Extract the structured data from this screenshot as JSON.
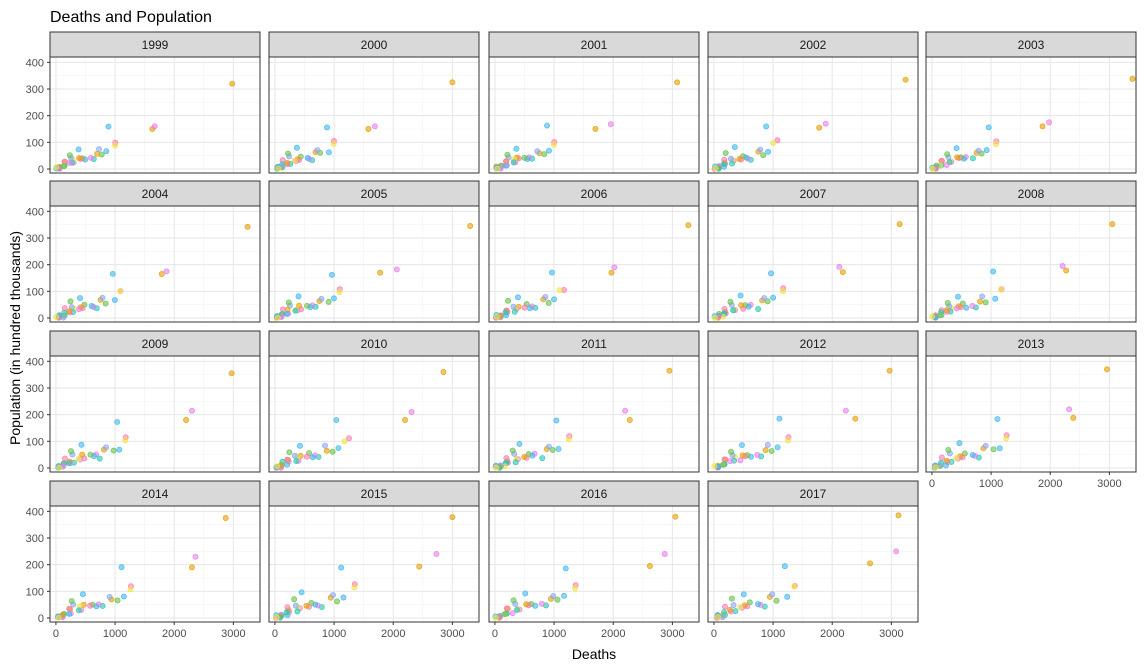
{
  "chart_data": {
    "type": "scatter",
    "title": "Deaths and Population",
    "xlabel": "Deaths",
    "ylabel": "Population (in hundred thousands)",
    "xlim": [
      -100,
      3450
    ],
    "ylim": [
      -15,
      420
    ],
    "x_ticks": [
      0,
      1000,
      2000,
      3000
    ],
    "x_tick_labels": [
      "0",
      "1000",
      "2000",
      "3000"
    ],
    "y_ticks": [
      0,
      100,
      200,
      300,
      400
    ],
    "y_tick_labels": [
      "0",
      "100",
      "200",
      "300",
      "400"
    ],
    "facet_by": "Year",
    "facets": [
      "1999",
      "2000",
      "2001",
      "2002",
      "2003",
      "2004",
      "2005",
      "2006",
      "2007",
      "2008",
      "2009",
      "2010",
      "2011",
      "2012",
      "2013",
      "2014",
      "2015",
      "2016",
      "2017"
    ],
    "colors": [
      "#E69F00",
      "#F0E442",
      "#66C24A",
      "#22C9B0",
      "#3FB8F0",
      "#8AA6F5",
      "#E97EEB",
      "#FF79B5"
    ],
    "point_alpha": 0.6,
    "base_points": [
      {
        "x": 2980,
        "y": 320,
        "c": 0
      },
      {
        "x": 1620,
        "y": 150,
        "c": 0
      },
      {
        "x": 1660,
        "y": 160,
        "c": 6
      },
      {
        "x": 1000,
        "y": 100,
        "c": 7
      },
      {
        "x": 985,
        "y": 92,
        "c": 1
      },
      {
        "x": 860,
        "y": 155,
        "c": 4
      },
      {
        "x": 880,
        "y": 65,
        "c": 4
      },
      {
        "x": 790,
        "y": 55,
        "c": 2
      },
      {
        "x": 700,
        "y": 60,
        "c": 0
      },
      {
        "x": 720,
        "y": 70,
        "c": 5
      },
      {
        "x": 620,
        "y": 35,
        "c": 3
      },
      {
        "x": 560,
        "y": 42,
        "c": 6
      },
      {
        "x": 520,
        "y": 38,
        "c": 4
      },
      {
        "x": 460,
        "y": 45,
        "c": 2
      },
      {
        "x": 420,
        "y": 35,
        "c": 7
      },
      {
        "x": 380,
        "y": 40,
        "c": 0
      },
      {
        "x": 360,
        "y": 75,
        "c": 4
      },
      {
        "x": 330,
        "y": 28,
        "c": 6
      },
      {
        "x": 300,
        "y": 32,
        "c": 1
      },
      {
        "x": 280,
        "y": 22,
        "c": 3
      },
      {
        "x": 250,
        "y": 42,
        "c": 5
      },
      {
        "x": 220,
        "y": 55,
        "c": 2
      },
      {
        "x": 200,
        "y": 18,
        "c": 6
      },
      {
        "x": 180,
        "y": 25,
        "c": 0
      },
      {
        "x": 160,
        "y": 12,
        "c": 4
      },
      {
        "x": 150,
        "y": 30,
        "c": 7
      },
      {
        "x": 130,
        "y": 16,
        "c": 3
      },
      {
        "x": 110,
        "y": 8,
        "c": 1
      },
      {
        "x": 100,
        "y": 10,
        "c": 2
      },
      {
        "x": 85,
        "y": 6,
        "c": 5
      },
      {
        "x": 70,
        "y": 5,
        "c": 6
      },
      {
        "x": 55,
        "y": 4,
        "c": 0
      },
      {
        "x": 45,
        "y": 3,
        "c": 3
      },
      {
        "x": 35,
        "y": 2,
        "c": 7
      },
      {
        "x": 30,
        "y": 6,
        "c": 4
      },
      {
        "x": 25,
        "y": 2,
        "c": 1
      }
    ],
    "years": [
      {
        "year": "1999",
        "x_scale": 1.0,
        "y_scale": 1.0,
        "top_x": 2980,
        "top_y": 320,
        "p1_x": 1630,
        "p1_y": 150,
        "p2_x": 1670,
        "p2_y": 160
      },
      {
        "year": "2000",
        "x_scale": 1.01,
        "y_scale": 1.01,
        "top_x": 3000,
        "top_y": 325,
        "p1_x": 1580,
        "p1_y": 150,
        "p2_x": 1690,
        "p2_y": 160
      },
      {
        "year": "2001",
        "x_scale": 1.03,
        "y_scale": 1.02,
        "top_x": 3080,
        "top_y": 325,
        "p1_x": 1700,
        "p1_y": 150,
        "p2_x": 1960,
        "p2_y": 168
      },
      {
        "year": "2002",
        "x_scale": 1.05,
        "y_scale": 1.03,
        "top_x": 3240,
        "top_y": 335,
        "p1_x": 1780,
        "p1_y": 155,
        "p2_x": 1890,
        "p2_y": 170
      },
      {
        "year": "2003",
        "x_scale": 1.08,
        "y_scale": 1.04,
        "top_x": 3390,
        "top_y": 338,
        "p1_x": 1870,
        "p1_y": 160,
        "p2_x": 1980,
        "p2_y": 175
      },
      {
        "year": "2004",
        "x_scale": 1.1,
        "y_scale": 1.06,
        "top_x": 3240,
        "top_y": 342,
        "p1_x": 1790,
        "p1_y": 165,
        "p2_x": 1870,
        "p2_y": 175
      },
      {
        "year": "2005",
        "x_scale": 1.12,
        "y_scale": 1.07,
        "top_x": 3300,
        "top_y": 345,
        "p1_x": 1780,
        "p1_y": 170,
        "p2_x": 2060,
        "p2_y": 182
      },
      {
        "year": "2006",
        "x_scale": 1.14,
        "y_scale": 1.09,
        "top_x": 3270,
        "top_y": 348,
        "p1_x": 1970,
        "p1_y": 170,
        "p2_x": 2020,
        "p2_y": 190
      },
      {
        "year": "2007",
        "x_scale": 1.16,
        "y_scale": 1.1,
        "top_x": 3140,
        "top_y": 352,
        "p1_x": 2180,
        "p1_y": 172,
        "p2_x": 2120,
        "p2_y": 192
      },
      {
        "year": "2008",
        "x_scale": 1.18,
        "y_scale": 1.11,
        "top_x": 3050,
        "top_y": 352,
        "p1_x": 2270,
        "p1_y": 178,
        "p2_x": 2210,
        "p2_y": 195
      },
      {
        "year": "2009",
        "x_scale": 1.2,
        "y_scale": 1.13,
        "top_x": 2970,
        "top_y": 355,
        "p1_x": 2200,
        "p1_y": 180,
        "p2_x": 2300,
        "p2_y": 215
      },
      {
        "year": "2010",
        "x_scale": 1.22,
        "y_scale": 1.14,
        "top_x": 2850,
        "top_y": 360,
        "p1_x": 2200,
        "p1_y": 180,
        "p2_x": 2310,
        "p2_y": 210
      },
      {
        "year": "2011",
        "x_scale": 1.24,
        "y_scale": 1.16,
        "top_x": 2950,
        "top_y": 365,
        "p1_x": 2280,
        "p1_y": 180,
        "p2_x": 2200,
        "p2_y": 215
      },
      {
        "year": "2012",
        "x_scale": 1.26,
        "y_scale": 1.17,
        "top_x": 2970,
        "top_y": 365,
        "p1_x": 2390,
        "p1_y": 185,
        "p2_x": 2230,
        "p2_y": 215
      },
      {
        "year": "2013",
        "x_scale": 1.28,
        "y_scale": 1.19,
        "top_x": 2960,
        "top_y": 370,
        "p1_x": 2390,
        "p1_y": 188,
        "p2_x": 2320,
        "p2_y": 220
      },
      {
        "year": "2014",
        "x_scale": 1.3,
        "y_scale": 1.2,
        "top_x": 2870,
        "top_y": 375,
        "p1_x": 2300,
        "p1_y": 190,
        "p2_x": 2360,
        "p2_y": 230
      },
      {
        "year": "2015",
        "x_scale": 1.33,
        "y_scale": 1.22,
        "top_x": 3000,
        "top_y": 378,
        "p1_x": 2440,
        "p1_y": 193,
        "p2_x": 2730,
        "p2_y": 240
      },
      {
        "year": "2016",
        "x_scale": 1.36,
        "y_scale": 1.23,
        "top_x": 3050,
        "top_y": 380,
        "p1_x": 2620,
        "p1_y": 195,
        "p2_x": 2870,
        "p2_y": 240
      },
      {
        "year": "2017",
        "x_scale": 1.38,
        "y_scale": 1.25,
        "top_x": 3120,
        "top_y": 385,
        "p1_x": 2640,
        "p1_y": 205,
        "p2_x": 3080,
        "p2_y": 250
      }
    ]
  }
}
